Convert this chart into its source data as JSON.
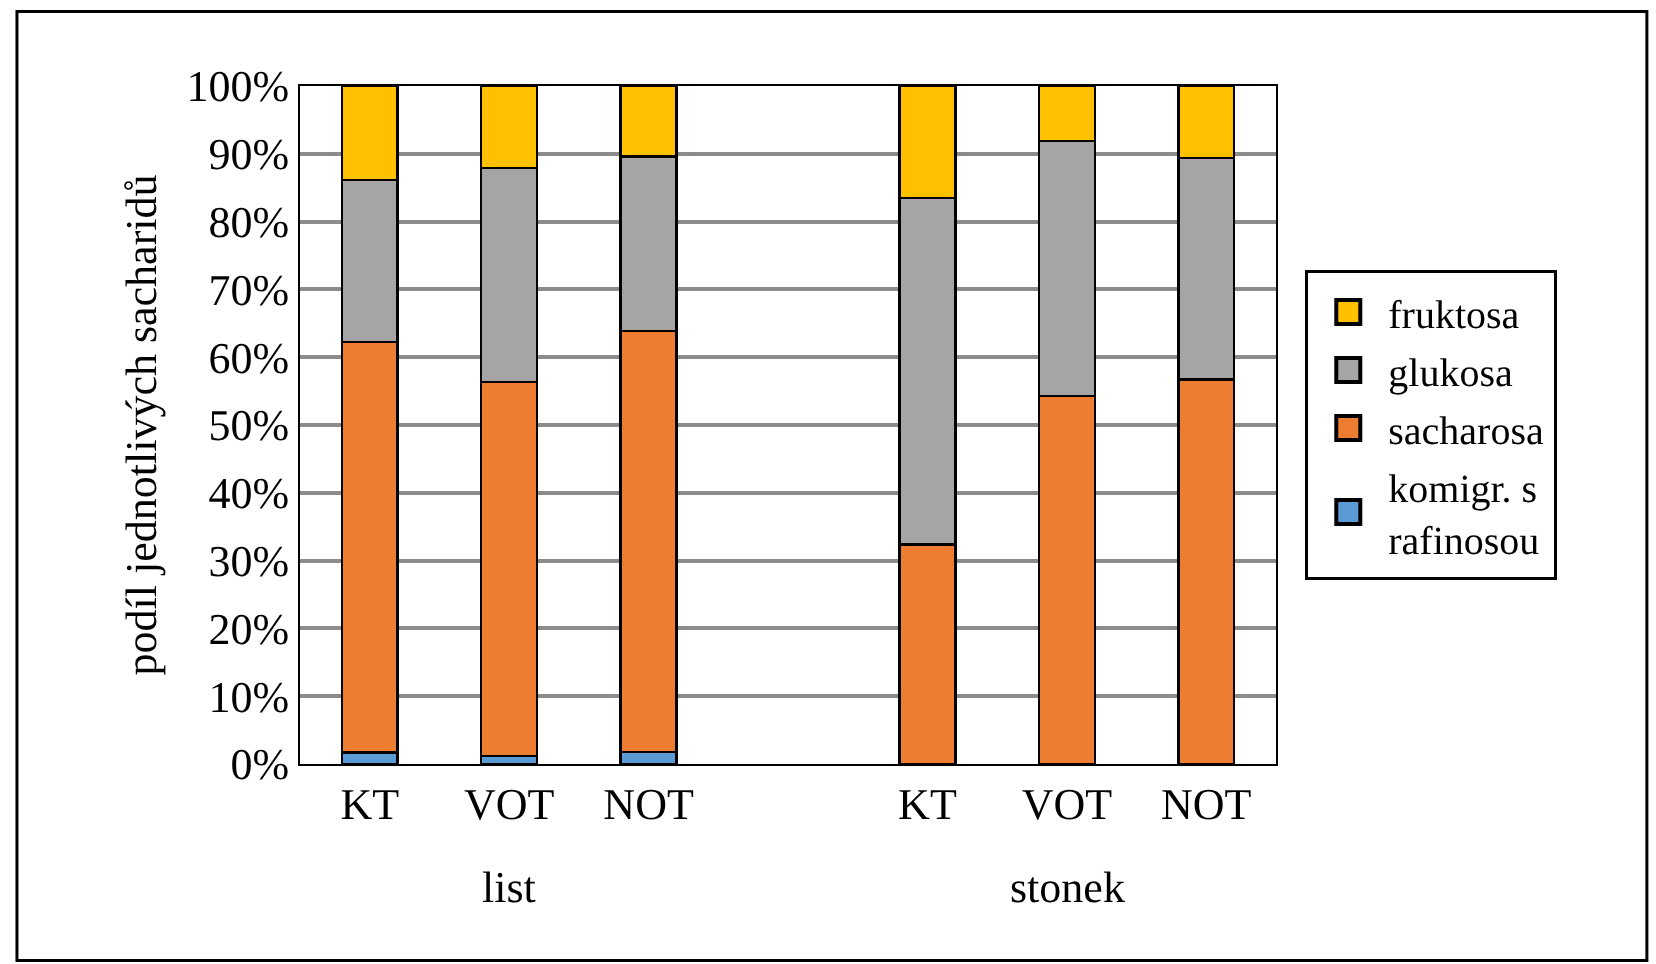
{
  "chart_data": {
    "type": "bar",
    "stacked": true,
    "ylabel": "podíl jednotlivých sacharidů",
    "categories": [
      "KT",
      "VOT",
      "NOT",
      null,
      "KT",
      "VOT",
      "NOT"
    ],
    "series": [
      {
        "name": "komigr. s rafinosou",
        "color": "#5b9bd5",
        "values": [
          1.7,
          1.2,
          1.8,
          null,
          null,
          null,
          null
        ]
      },
      {
        "name": "sacharosa",
        "color": "#ed7d31",
        "values": [
          60.5,
          55.1,
          62.1,
          null,
          32.4,
          54.3,
          56.7
        ]
      },
      {
        "name": "glukosa",
        "color": "#a5a5a5",
        "values": [
          23.9,
          31.6,
          25.7,
          null,
          51.1,
          37.6,
          32.7
        ]
      },
      {
        "name": "fruktosa",
        "color": "#ffc000",
        "values": [
          13.9,
          12.1,
          10.4,
          null,
          16.5,
          8.1,
          10.6
        ]
      }
    ],
    "ylim": [
      0,
      100
    ],
    "yticks": [
      {
        "value": 0,
        "label": "0%"
      },
      {
        "value": 10,
        "label": "10%"
      },
      {
        "value": 20,
        "label": "20%"
      },
      {
        "value": 30,
        "label": "30%"
      },
      {
        "value": 40,
        "label": "40%"
      },
      {
        "value": 50,
        "label": "50%"
      },
      {
        "value": 60,
        "label": "60%"
      },
      {
        "value": 70,
        "label": "70%"
      },
      {
        "value": 80,
        "label": "80%"
      },
      {
        "value": 90,
        "label": "90%"
      },
      {
        "value": 100,
        "label": "100%"
      }
    ],
    "grid": "y",
    "legend": "right",
    "annotations": [
      "list",
      "stonek"
    ]
  }
}
